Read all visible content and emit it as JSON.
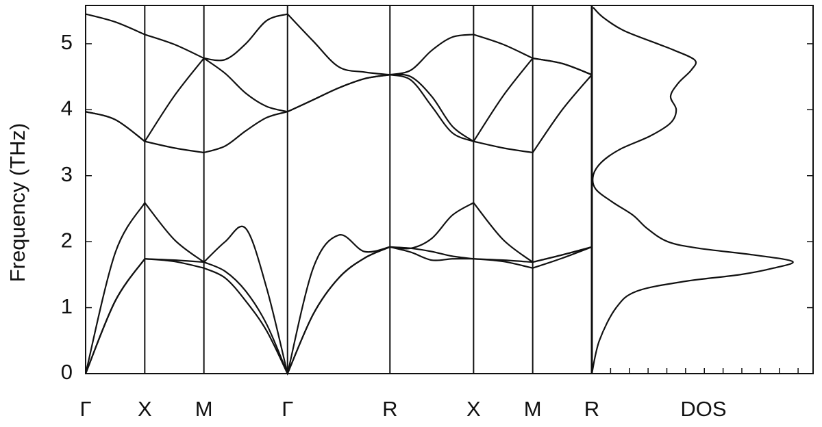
{
  "chart_data": [
    {
      "type": "line",
      "ylabel": "Frequency (THz)",
      "x": [
        0,
        0.25,
        0.5,
        0.75,
        1.0,
        1.18,
        1.354,
        1.53,
        1.707,
        1.924,
        2.14,
        2.357,
        2.573,
        2.75,
        2.927,
        3.1,
        3.28,
        3.53,
        3.78,
        4.03,
        4.28
      ],
      "xlim": [
        0,
        4.28
      ],
      "xticks": [
        {
          "value": 0,
          "label": "Γ"
        },
        {
          "value": 0.5,
          "label": "X"
        },
        {
          "value": 1.0,
          "label": "M"
        },
        {
          "value": 1.707,
          "label": "Γ"
        },
        {
          "value": 2.573,
          "label": "R"
        },
        {
          "value": 3.28,
          "label": "X"
        },
        {
          "value": 3.78,
          "label": "M"
        },
        {
          "value": 4.28,
          "label": "R"
        }
      ],
      "ylim": [
        0,
        5.58
      ],
      "yticks": [
        0,
        1,
        2,
        3,
        4,
        5
      ],
      "color": "#111111",
      "series": [
        {
          "values": [
            0,
            1.1,
            1.74,
            1.7,
            1.6,
            1.45,
            1.1,
            0.65,
            0,
            0.9,
            1.45,
            1.75,
            1.92,
            1.84,
            1.72,
            1.74,
            1.74,
            1.7,
            1.6,
            1.75,
            1.92
          ]
        },
        {
          "values": [
            0,
            1.1,
            1.74,
            1.72,
            1.69,
            1.55,
            1.25,
            0.75,
            0,
            0.9,
            1.45,
            1.75,
            1.92,
            1.9,
            1.85,
            1.78,
            1.74,
            1.72,
            1.69,
            1.8,
            1.92
          ]
        },
        {
          "values": [
            0,
            1.83,
            2.59,
            2.03,
            1.69,
            2.0,
            2.2,
            1.3,
            0,
            1.6,
            2.1,
            1.85,
            1.92,
            1.9,
            2.05,
            2.4,
            2.59,
            2.03,
            1.69,
            1.8,
            1.92
          ]
        },
        {
          "values": [
            3.97,
            3.85,
            3.52,
            3.42,
            3.35,
            3.45,
            3.68,
            3.88,
            3.97,
            4.15,
            4.33,
            4.47,
            4.53,
            4.45,
            4.05,
            3.65,
            3.52,
            3.42,
            3.35,
            4.0,
            4.53
          ]
        },
        {
          "values": [
            3.97,
            3.85,
            3.52,
            4.21,
            4.78,
            4.55,
            4.25,
            4.05,
            3.97,
            4.15,
            4.33,
            4.47,
            4.53,
            4.5,
            4.2,
            3.75,
            3.52,
            4.21,
            4.78,
            4.7,
            4.53
          ]
        },
        {
          "values": [
            5.45,
            5.33,
            5.14,
            4.99,
            4.78,
            4.76,
            5.0,
            5.35,
            5.45,
            5.04,
            4.65,
            4.57,
            4.53,
            4.6,
            4.9,
            5.1,
            5.14,
            4.99,
            4.78,
            4.7,
            4.53
          ]
        }
      ]
    },
    {
      "type": "line",
      "orientation": "horizontal",
      "xlabel": "DOS",
      "y": [
        0,
        0.5,
        1.0,
        1.25,
        1.4,
        1.5,
        1.6,
        1.7,
        1.8,
        1.9,
        2.0,
        2.2,
        2.4,
        2.6,
        2.8,
        3.0,
        3.2,
        3.4,
        3.6,
        3.8,
        4.0,
        4.2,
        4.4,
        4.6,
        4.75,
        4.9,
        5.0,
        5.2,
        5.4,
        5.55
      ],
      "values": [
        0,
        0.4,
        1.3,
        2.4,
        5.0,
        7.9,
        9.7,
        10.7,
        8.6,
        5.7,
        4.05,
        2.95,
        2.2,
        1.1,
        0.2,
        0.07,
        0.5,
        1.5,
        3.1,
        4.2,
        4.5,
        4.2,
        4.6,
        5.3,
        5.5,
        4.4,
        3.5,
        1.7,
        0.6,
        0.07
      ],
      "xlim": [
        0,
        11.8
      ],
      "xticks": [
        1,
        2,
        3,
        4,
        5,
        6,
        7,
        8,
        9,
        10,
        11
      ],
      "ylim": [
        0,
        5.58
      ],
      "yticks": [
        0,
        1,
        2,
        3,
        4,
        5
      ],
      "color": "#111111"
    }
  ]
}
